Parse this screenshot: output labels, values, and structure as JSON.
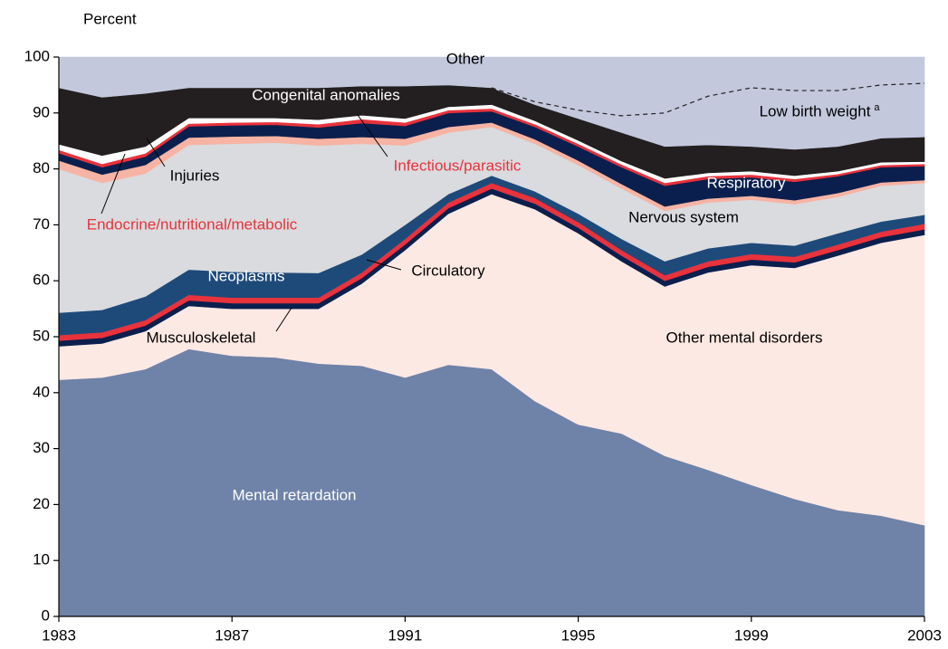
{
  "chart_data": {
    "type": "stacked_area",
    "y_axis_label": "Percent",
    "x": [
      1983,
      1984,
      1985,
      1986,
      1987,
      1988,
      1989,
      1990,
      1991,
      1992,
      1993,
      1994,
      1995,
      1996,
      1997,
      1998,
      1999,
      2000,
      2001,
      2002,
      2003
    ],
    "xlim": [
      1983,
      2003
    ],
    "xticks": [
      1983,
      1987,
      1991,
      1995,
      1999,
      2003
    ],
    "ylim": [
      0,
      100
    ],
    "yticks": [
      0,
      10,
      20,
      30,
      40,
      50,
      60,
      70,
      80,
      90,
      100
    ],
    "series": [
      {
        "name": "Mental retardation",
        "color": "#6f82a8",
        "values": [
          42.3,
          42.7,
          44.2,
          47.8,
          46.6,
          46.3,
          45.2,
          44.8,
          42.7,
          45.0,
          44.2,
          38.5,
          34.3,
          32.7,
          28.7,
          26.2,
          23.5,
          21.0,
          19.0,
          18.0,
          16.3
        ]
      },
      {
        "name": "Other mental disorders",
        "color": "#fde9e3",
        "values": [
          6.0,
          6.1,
          6.8,
          7.7,
          8.4,
          8.7,
          9.8,
          14.7,
          22.8,
          27.0,
          31.3,
          34.3,
          34.2,
          30.8,
          30.3,
          35.3,
          39.3,
          41.3,
          45.5,
          48.8,
          51.9
        ]
      },
      {
        "name": "Musculoskeletal",
        "color": "#0a1f4d",
        "values": [
          1.0,
          1.0,
          1.0,
          1.0,
          1.0,
          1.0,
          1.0,
          1.0,
          1.0,
          1.0,
          1.0,
          1.0,
          1.0,
          1.0,
          1.0,
          1.0,
          1.0,
          1.0,
          1.0,
          1.0,
          1.0
        ]
      },
      {
        "name": "Circulatory",
        "color": "#e8323c",
        "values": [
          1.0,
          1.0,
          1.0,
          1.0,
          1.0,
          1.0,
          1.0,
          1.0,
          1.0,
          1.0,
          1.0,
          1.0,
          1.0,
          1.0,
          1.0,
          1.0,
          1.0,
          1.0,
          1.0,
          1.0,
          1.0
        ]
      },
      {
        "name": "Neoplasms",
        "color": "#1e4a7a",
        "values": [
          4.0,
          4.0,
          4.2,
          4.5,
          4.6,
          4.5,
          4.4,
          3.2,
          2.5,
          1.5,
          1.3,
          1.2,
          1.5,
          2.0,
          2.5,
          2.3,
          2.0,
          2.0,
          2.0,
          1.8,
          1.6
        ]
      },
      {
        "name": "Nervous system",
        "color": "#d9dbde",
        "values": [
          25.7,
          22.7,
          22.0,
          22.3,
          22.9,
          23.2,
          22.8,
          19.8,
          14.2,
          11.0,
          8.7,
          8.5,
          8.7,
          9.0,
          9.0,
          8.2,
          7.7,
          7.4,
          6.5,
          6.4,
          5.7
        ]
      },
      {
        "name": "Endocrine/nutritional/metabolic",
        "color": "#f7b3a3",
        "values": [
          1.5,
          1.5,
          1.5,
          1.3,
          1.3,
          1.2,
          1.2,
          1.2,
          1.2,
          1.0,
          0.8,
          0.8,
          0.8,
          0.8,
          0.8,
          0.7,
          0.7,
          0.7,
          0.7,
          0.6,
          0.5
        ]
      },
      {
        "name": "Respiratory",
        "color": "#0a1f4d",
        "values": [
          1.3,
          1.3,
          1.5,
          2.0,
          2.0,
          2.0,
          2.0,
          2.5,
          2.3,
          2.5,
          2.0,
          2.2,
          2.5,
          3.0,
          3.7,
          3.5,
          3.3,
          3.3,
          3.0,
          2.7,
          2.5
        ]
      },
      {
        "name": "Infectious/parasitic",
        "color": "#e8323c",
        "values": [
          0.6,
          0.6,
          0.6,
          0.5,
          0.5,
          0.5,
          0.6,
          0.7,
          0.6,
          0.5,
          0.5,
          0.5,
          0.5,
          0.5,
          0.5,
          0.5,
          0.5,
          0.5,
          0.4,
          0.4,
          0.4
        ]
      },
      {
        "name": "Injuries",
        "color": "#ffffff",
        "values": [
          1.0,
          1.5,
          1.2,
          1.0,
          0.8,
          0.7,
          0.8,
          0.7,
          0.7,
          0.6,
          0.7,
          0.6,
          0.6,
          0.6,
          0.8,
          0.6,
          0.6,
          0.6,
          0.5,
          0.5,
          0.4
        ]
      },
      {
        "name": "Congenital anomalies",
        "color": "#231f20",
        "values": [
          10.1,
          10.4,
          9.5,
          5.4,
          5.4,
          5.4,
          5.7,
          5.2,
          5.8,
          3.9,
          3.0,
          2.9,
          3.9,
          5.1,
          5.7,
          5.0,
          4.4,
          4.7,
          4.4,
          4.3,
          4.4
        ]
      },
      {
        "name": "Low birth weight",
        "note_marker": "a",
        "color": "#c3c8dd",
        "line_style": "dashed",
        "values": [
          null,
          null,
          null,
          null,
          null,
          null,
          null,
          null,
          null,
          null,
          0.0,
          0.5,
          1.5,
          3.0,
          6.0,
          8.7,
          10.5,
          10.5,
          10.0,
          9.5,
          9.6
        ]
      },
      {
        "name": "Other",
        "color": "#c3c8dd",
        "values": [
          5.5,
          7.2,
          6.5,
          5.5,
          5.5,
          5.5,
          5.5,
          5.2,
          5.2,
          5.0,
          5.5,
          8.0,
          9.5,
          10.5,
          10.0,
          7.0,
          5.5,
          6.0,
          6.0,
          5.0,
          4.7
        ]
      }
    ]
  }
}
